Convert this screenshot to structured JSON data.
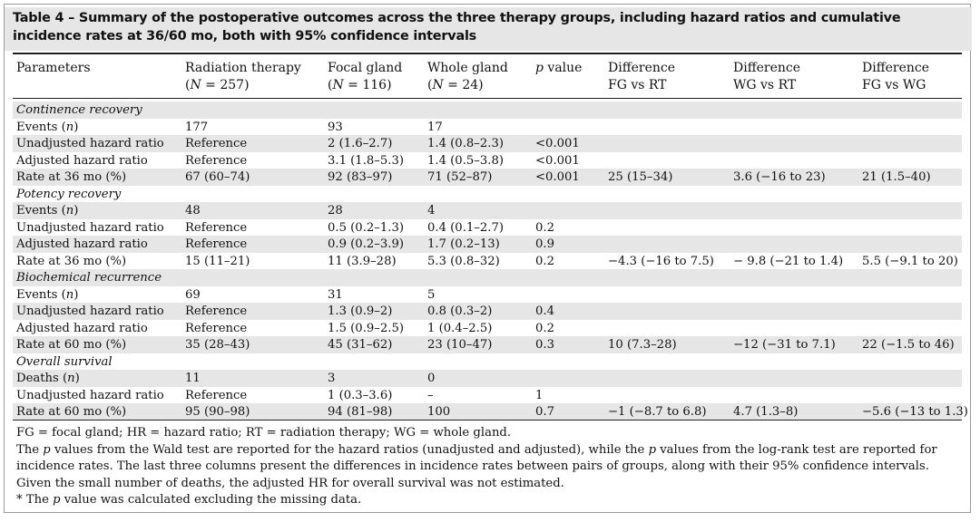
{
  "caption": "Table 4 – Summary of the postoperative outcomes across the three therapy groups, including hazard ratios and cumulative incidence rates at 36/60 mo, both with 95% confidence intervals",
  "headers": [
    {
      "line1": "Parameters",
      "line2": ""
    },
    {
      "line1": "Radiation therapy",
      "line2": "(N = 257)"
    },
    {
      "line1": "Focal gland",
      "line2": "(N = 116)"
    },
    {
      "line1": "Whole gland",
      "line2": "(N = 24)"
    },
    {
      "line1": "p value",
      "line2": ""
    },
    {
      "line1": "Difference",
      "line2": "FG vs RT"
    },
    {
      "line1": "Difference",
      "line2": "WG vs RT"
    },
    {
      "line1": "Difference",
      "line2": "FG vs WG"
    }
  ],
  "rows": [
    {
      "section": "Continence recovery"
    },
    {
      "cells": [
        "Events (n)",
        "177",
        "93",
        "17",
        "",
        "",
        "",
        ""
      ]
    },
    {
      "cells": [
        "Unadjusted hazard ratio",
        "Reference",
        "2 (1.6–2.7)",
        "1.4 (0.8–2.3)",
        "<0.001",
        "",
        "",
        ""
      ]
    },
    {
      "cells": [
        "Adjusted hazard ratio",
        "Reference",
        "3.1 (1.8–5.3)",
        "1.4 (0.5–3.8)",
        "<0.001",
        "",
        "",
        ""
      ]
    },
    {
      "cells": [
        "Rate at 36 mo (%)",
        "67 (60–74)",
        "92 (83–97)",
        "71 (52–87)",
        "<0.001",
        "25 (15–34)",
        "3.6 (−16 to 23)",
        "21 (1.5–40)"
      ]
    },
    {
      "section": "Potency recovery"
    },
    {
      "cells": [
        "Events (n)",
        "48",
        "28",
        "4",
        "",
        "",
        "",
        ""
      ]
    },
    {
      "cells": [
        "Unadjusted hazard ratio",
        "Reference",
        "0.5 (0.2–1.3)",
        "0.4 (0.1–2.7)",
        "0.2",
        "",
        "",
        ""
      ]
    },
    {
      "cells": [
        "Adjusted hazard ratio",
        "Reference",
        "0.9 (0.2–3.9)",
        "1.7 (0.2–13)",
        "0.9",
        "",
        "",
        ""
      ]
    },
    {
      "cells": [
        "Rate at 36 mo (%)",
        "15 (11–21)",
        "11 (3.9–28)",
        "5.3 (0.8–32)",
        "0.2",
        "−4.3 (−16 to 7.5)",
        "− 9.8 (−21 to 1.4)",
        "5.5 (−9.1 to 20)"
      ]
    },
    {
      "section": "Biochemical recurrence"
    },
    {
      "cells": [
        "Events (n)",
        "69",
        "31",
        "5",
        "",
        "",
        "",
        ""
      ]
    },
    {
      "cells": [
        "Unadjusted hazard ratio",
        "Reference",
        "1.3 (0.9–2)",
        "0.8 (0.3–2)",
        "0.4",
        "",
        "",
        ""
      ]
    },
    {
      "cells": [
        "Adjusted hazard ratio",
        "Reference",
        "1.5 (0.9–2.5)",
        "1 (0.4–2.5)",
        "0.2",
        "",
        "",
        ""
      ]
    },
    {
      "cells": [
        "Rate at 60 mo (%)",
        "35 (28–43)",
        "45 (31–62)",
        "23 (10–47)",
        "0.3",
        "10 (7.3–28)",
        "−12 (−31 to 7.1)",
        "22 (−1.5 to 46)"
      ]
    },
    {
      "section": "Overall survival"
    },
    {
      "cells": [
        "Deaths (n)",
        "11",
        "3",
        "0",
        "",
        "",
        "",
        ""
      ]
    },
    {
      "cells": [
        "Unadjusted hazard ratio",
        "Reference",
        "1 (0.3–3.6)",
        "–",
        "1",
        "",
        "",
        ""
      ]
    },
    {
      "cells": [
        "Rate at 60 mo (%)",
        "95 (90–98)",
        "94 (81–98)",
        "100",
        "0.7",
        "−1 (−8.7 to 6.8)",
        "4.7 (1.3–8)",
        "−5.6 (−13 to 1.3)"
      ]
    }
  ],
  "notes": {
    "abbrev": "FG = focal gland; HR = hazard ratio; RT = radiation therapy; WG = whole gland.",
    "pvalues": "The p values from the Wald test are reported for the hazard ratios (unadjusted and adjusted), while the p values from the log-rank test are reported for incidence rates. The last three columns present the differences in incidence rates between pairs of groups, along with their 95% confidence intervals. Given the small number of deaths, the adjusted HR for overall survival was not estimated.",
    "footnote": "* The p value was calculated excluding the missing data."
  }
}
